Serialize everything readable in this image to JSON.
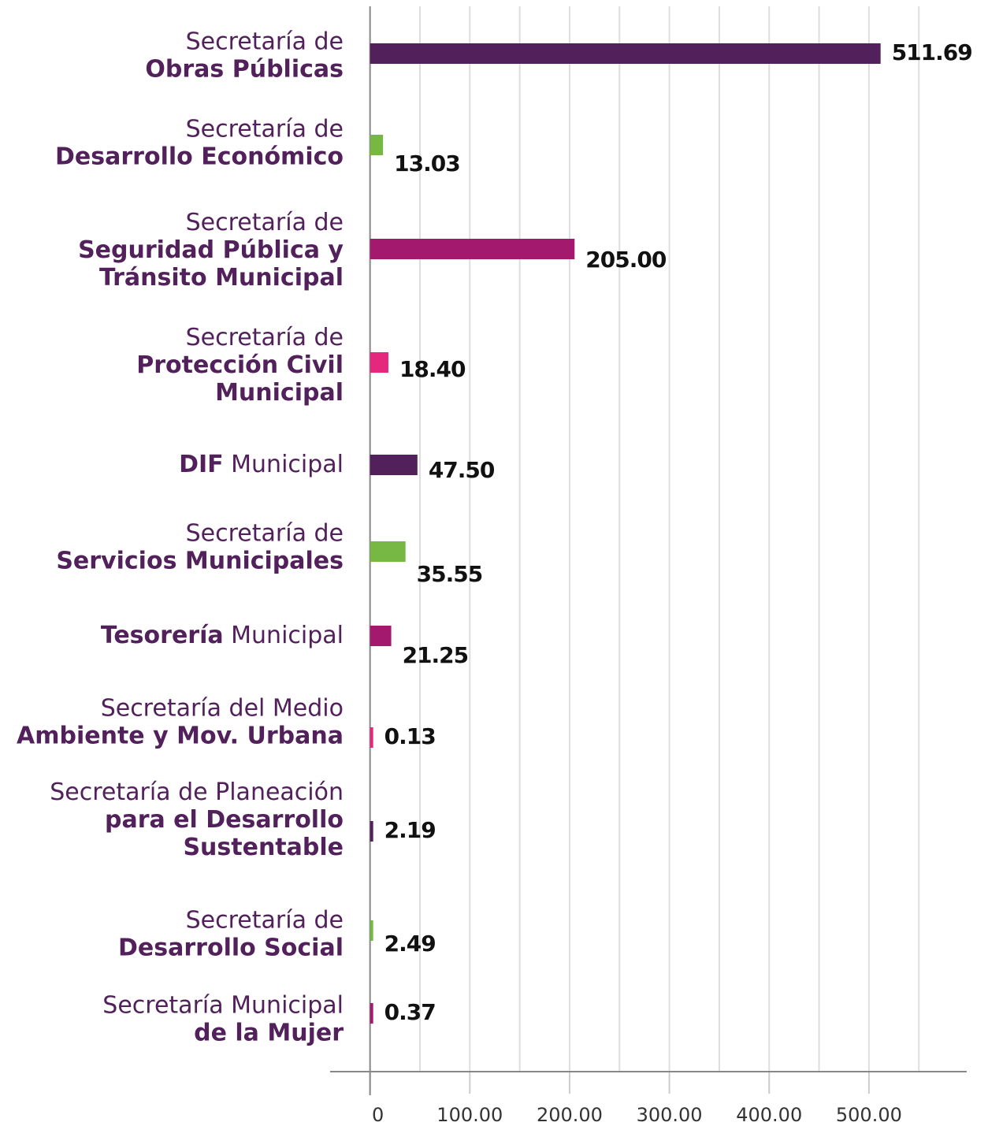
{
  "chart_data": {
    "type": "hbar",
    "categories": [
      [
        [
          {
            "text": "Secretaría de",
            "bold": false
          }
        ],
        [
          {
            "text": "Obras Públicas",
            "bold": true
          }
        ]
      ],
      [
        [
          {
            "text": "Secretaría de",
            "bold": false
          }
        ],
        [
          {
            "text": "Desarrollo Económico",
            "bold": true
          }
        ]
      ],
      [
        [
          {
            "text": "Secretaría de",
            "bold": false
          }
        ],
        [
          {
            "text": "Seguridad Pública y",
            "bold": true
          }
        ],
        [
          {
            "text": "Tránsito Municipal",
            "bold": true
          }
        ]
      ],
      [
        [
          {
            "text": "Secretaría de",
            "bold": false
          }
        ],
        [
          {
            "text": "Protección Civil",
            "bold": true
          }
        ],
        [
          {
            "text": "Municipal",
            "bold": true
          }
        ]
      ],
      [
        [
          {
            "text": "DIF",
            "bold": true
          },
          {
            "text": " Municipal",
            "bold": false
          }
        ]
      ],
      [
        [
          {
            "text": "Secretaría de",
            "bold": false
          }
        ],
        [
          {
            "text": "Servicios Municipales",
            "bold": true
          }
        ]
      ],
      [
        [
          {
            "text": "Tesorería",
            "bold": true
          },
          {
            "text": " Municipal",
            "bold": false
          }
        ]
      ],
      [
        [
          {
            "text": "Secretaría del Medio",
            "bold": false
          }
        ],
        [
          {
            "text": "Ambiente y Mov. Urbana",
            "bold": true
          }
        ]
      ],
      [
        [
          {
            "text": "Secretaría de Planeación",
            "bold": false
          }
        ],
        [
          {
            "text": "para el Desarrollo",
            "bold": true
          }
        ],
        [
          {
            "text": "Sustentable",
            "bold": true
          }
        ]
      ],
      [
        [
          {
            "text": "Secretaría de",
            "bold": false
          }
        ],
        [
          {
            "text": "Desarrollo Social",
            "bold": true
          }
        ]
      ],
      [
        [
          {
            "text": "Secretaría Municipal",
            "bold": false
          }
        ],
        [
          {
            "text": "de la Mujer",
            "bold": true
          }
        ]
      ]
    ],
    "values": [
      511.69,
      13.03,
      205,
      18.4,
      47.5,
      35.55,
      21.25,
      0.13,
      2.19,
      2.49,
      0.37
    ],
    "value_labels": [
      "511.69",
      "13.03",
      "205.00",
      "18.40",
      "47.50",
      "35.55",
      "21.25",
      "0.13",
      "2.19",
      "2.49",
      "0.37"
    ],
    "colors": [
      "#52215b",
      "#76b843",
      "#a3196e",
      "#e5287d",
      "#52215b",
      "#76b843",
      "#a3196e",
      "#e5287d",
      "#52215b",
      "#76b843",
      "#a3196e"
    ],
    "xlim": [
      -40,
      598
    ],
    "xticks": [
      0,
      {
        "value": 100,
        "label": "100.00"
      },
      {
        "value": 200,
        "label": "200.00"
      },
      {
        "value": 300,
        "label": "300.00"
      },
      {
        "value": 400,
        "label": "400.00"
      },
      {
        "value": 500,
        "label": "500.00"
      }
    ],
    "xminor_ticks": [
      50,
      150,
      250,
      350,
      450,
      550
    ],
    "grid": true
  }
}
